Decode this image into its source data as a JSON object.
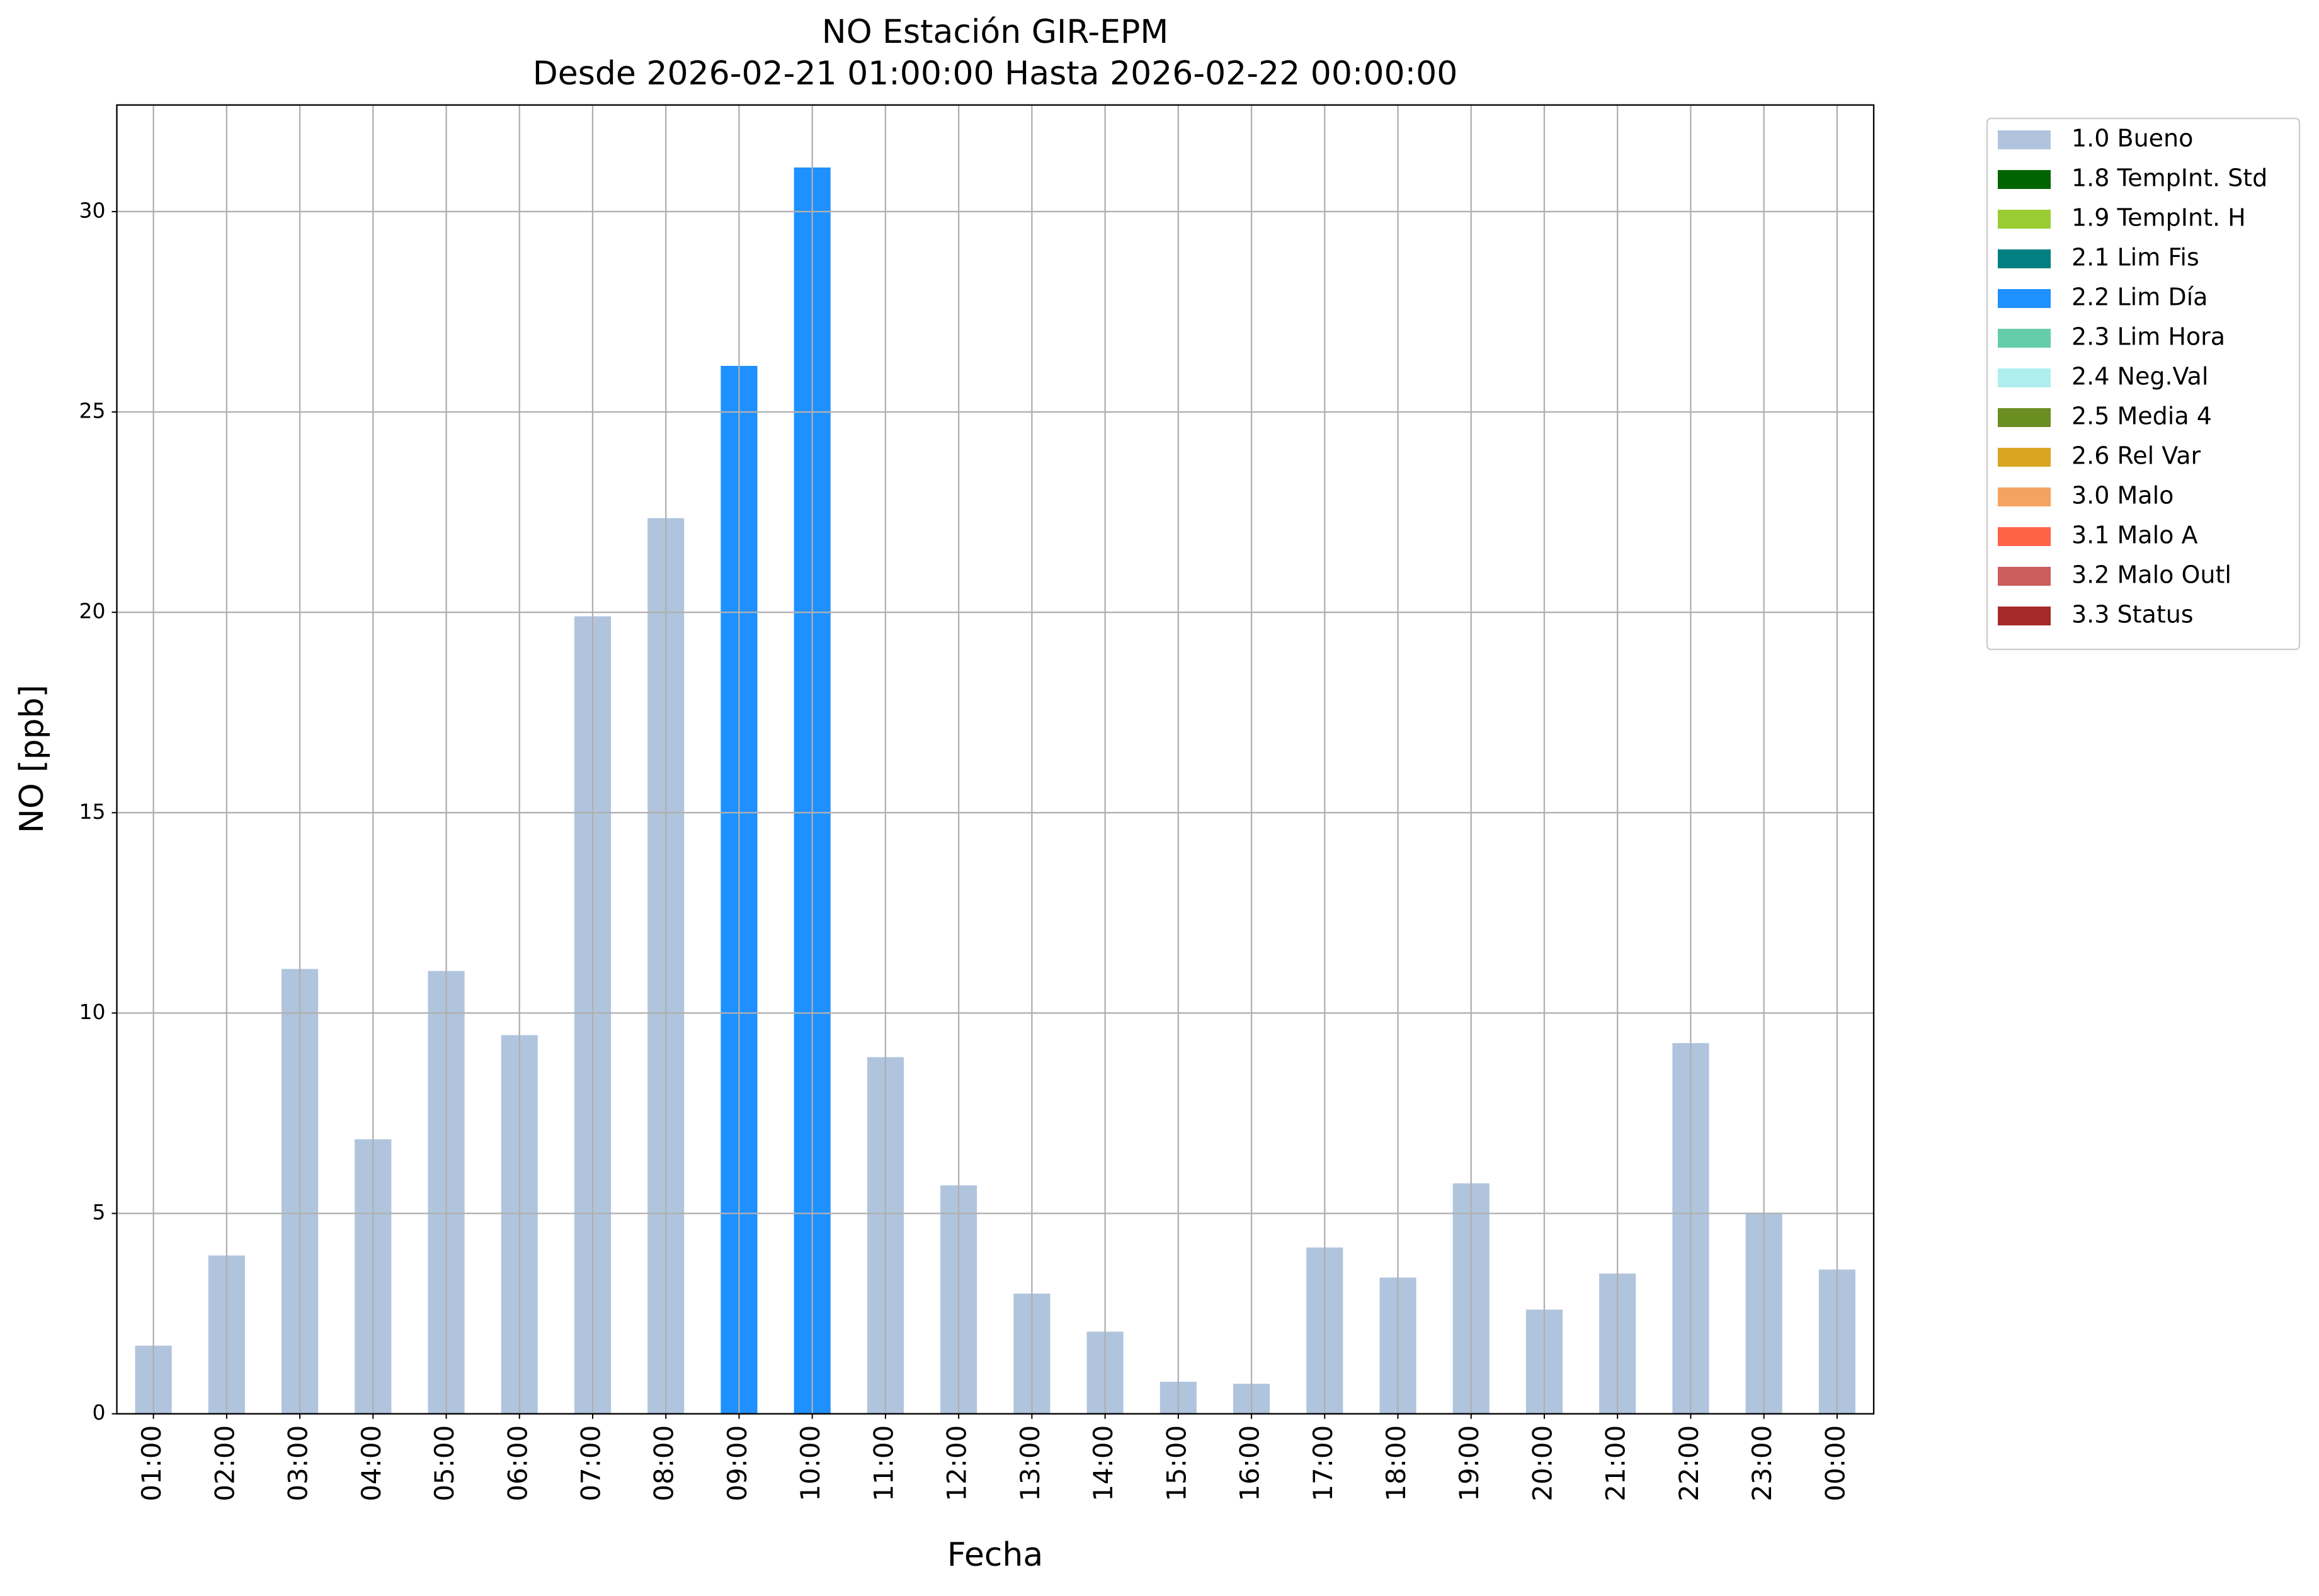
{
  "chart_data": {
    "type": "stacked_bar",
    "title": "NO Estación GIR-EPM",
    "subtitle": "Desde 2026-02-21 01:00:00 Hasta 2026-02-22 00:00:00",
    "x_label": "Fecha",
    "y_label": "NO [ppb]",
    "categories": [
      "01:00",
      "02:00",
      "03:00",
      "04:00",
      "05:00",
      "06:00",
      "07:00",
      "08:00",
      "09:00",
      "10:00",
      "11:00",
      "12:00",
      "13:00",
      "14:00",
      "15:00",
      "16:00",
      "17:00",
      "18:00",
      "19:00",
      "20:00",
      "21:00",
      "22:00",
      "23:00",
      "00:00"
    ],
    "series": [
      {
        "name": "1.0 Bueno",
        "color": "#b0c4de",
        "values": [
          1.7,
          3.95,
          11.1,
          6.85,
          11.05,
          9.45,
          19.9,
          22.35,
          null,
          null,
          8.9,
          5.7,
          3,
          2.05,
          0.8,
          0.75,
          4.15,
          3.4,
          5.75,
          2.6,
          3.5,
          9.25,
          5,
          3.6
        ]
      },
      {
        "name": "1.8 TempInt. Std",
        "color": "#006400",
        "values": [
          null,
          null,
          null,
          null,
          null,
          null,
          null,
          null,
          null,
          null,
          null,
          null,
          null,
          null,
          null,
          null,
          null,
          null,
          null,
          null,
          null,
          null,
          null,
          null
        ]
      },
      {
        "name": "1.9 TempInt. H",
        "color": "#9acd32",
        "values": [
          null,
          null,
          null,
          null,
          null,
          null,
          null,
          null,
          null,
          null,
          null,
          null,
          null,
          null,
          null,
          null,
          null,
          null,
          null,
          null,
          null,
          null,
          null,
          null
        ]
      },
      {
        "name": "2.1 Lim Fis",
        "color": "#008080",
        "values": [
          null,
          null,
          null,
          null,
          null,
          null,
          null,
          null,
          null,
          null,
          null,
          null,
          null,
          null,
          null,
          null,
          null,
          null,
          null,
          null,
          null,
          null,
          null,
          null
        ]
      },
      {
        "name": "2.2 Lim Día",
        "color": "#1e90ff",
        "values": [
          null,
          null,
          null,
          null,
          null,
          null,
          null,
          null,
          26.15,
          31.1,
          null,
          null,
          null,
          null,
          null,
          null,
          null,
          null,
          null,
          null,
          null,
          null,
          null,
          null
        ]
      },
      {
        "name": "2.3 Lim Hora",
        "color": "#66cdaa",
        "values": [
          null,
          null,
          null,
          null,
          null,
          null,
          null,
          null,
          null,
          null,
          null,
          null,
          null,
          null,
          null,
          null,
          null,
          null,
          null,
          null,
          null,
          null,
          null,
          null
        ]
      },
      {
        "name": "2.4 Neg.Val",
        "color": "#afeeee",
        "values": [
          null,
          null,
          null,
          null,
          null,
          null,
          null,
          null,
          null,
          null,
          null,
          null,
          null,
          null,
          null,
          null,
          null,
          null,
          null,
          null,
          null,
          null,
          null,
          null
        ]
      },
      {
        "name": "2.5 Media 4",
        "color": "#6b8e23",
        "values": [
          null,
          null,
          null,
          null,
          null,
          null,
          null,
          null,
          null,
          null,
          null,
          null,
          null,
          null,
          null,
          null,
          null,
          null,
          null,
          null,
          null,
          null,
          null,
          null
        ]
      },
      {
        "name": "2.6 Rel Var",
        "color": "#daa520",
        "values": [
          null,
          null,
          null,
          null,
          null,
          null,
          null,
          null,
          null,
          null,
          null,
          null,
          null,
          null,
          null,
          null,
          null,
          null,
          null,
          null,
          null,
          null,
          null,
          null
        ]
      },
      {
        "name": "3.0 Malo",
        "color": "#f4a460",
        "values": [
          null,
          null,
          null,
          null,
          null,
          null,
          null,
          null,
          null,
          null,
          null,
          null,
          null,
          null,
          null,
          null,
          null,
          null,
          null,
          null,
          null,
          null,
          null,
          null
        ]
      },
      {
        "name": "3.1 Malo A",
        "color": "#ff6347",
        "values": [
          null,
          null,
          null,
          null,
          null,
          null,
          null,
          null,
          null,
          null,
          null,
          null,
          null,
          null,
          null,
          null,
          null,
          null,
          null,
          null,
          null,
          null,
          null,
          null
        ]
      },
      {
        "name": "3.2 Malo Outl",
        "color": "#cd5c5c",
        "values": [
          null,
          null,
          null,
          null,
          null,
          null,
          null,
          null,
          null,
          null,
          null,
          null,
          null,
          null,
          null,
          null,
          null,
          null,
          null,
          null,
          null,
          null,
          null,
          null
        ]
      },
      {
        "name": "3.3 Status",
        "color": "#a52a2a",
        "values": [
          null,
          null,
          null,
          null,
          null,
          null,
          null,
          null,
          null,
          null,
          null,
          null,
          null,
          null,
          null,
          null,
          null,
          null,
          null,
          null,
          null,
          null,
          null,
          null
        ]
      }
    ],
    "ylim": [
      0,
      32.66
    ],
    "yticks": [
      0,
      5,
      10,
      15,
      20,
      25,
      30
    ],
    "grid": true,
    "legend": "right"
  }
}
